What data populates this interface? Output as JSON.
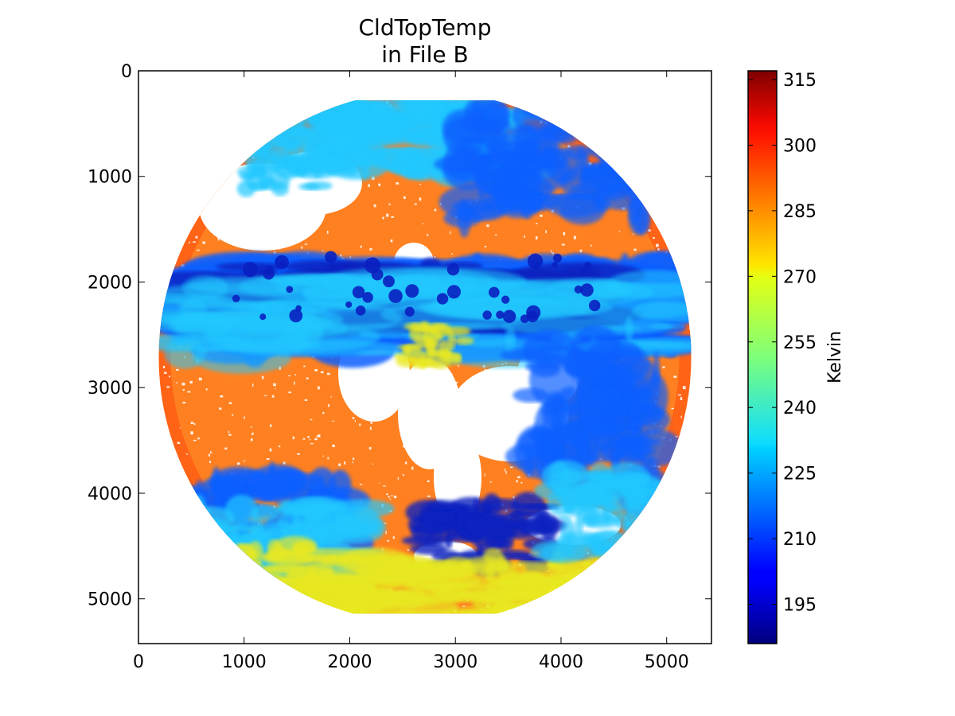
{
  "chart_data": {
    "type": "heatmap",
    "title": "CldTopTemp\nin File B",
    "title_lines": [
      "CldTopTemp",
      "in File B"
    ],
    "xlim": [
      0,
      5424
    ],
    "ylim": [
      5424,
      0
    ],
    "x_ticks": [
      0,
      1000,
      2000,
      3000,
      4000,
      5000
    ],
    "y_ticks": [
      0,
      1000,
      2000,
      3000,
      4000,
      5000
    ],
    "x_tick_labels": [
      "0",
      "1000",
      "2000",
      "3000",
      "4000",
      "5000"
    ],
    "y_tick_labels": [
      "0",
      "1000",
      "2000",
      "3000",
      "4000",
      "5000"
    ],
    "xlabel": "",
    "ylabel": "",
    "colorbar": {
      "label": "Kelvin",
      "colormap": "jet",
      "range": [
        186,
        317
      ],
      "ticks": [
        195,
        210,
        225,
        240,
        255,
        270,
        285,
        300,
        315
      ],
      "tick_labels": [
        "195",
        "210",
        "225",
        "240",
        "255",
        "270",
        "285",
        "300",
        "315"
      ]
    },
    "disk": {
      "center": [
        2712,
        2712
      ],
      "radius": 2520,
      "clipped_rows": [
        280,
        5140
      ]
    },
    "colors": {
      "ocean_clear": "#ff8020",
      "land_warm": "#ff5010",
      "high_cloud": "#1060ff",
      "deep_convection": "#0a20c0",
      "mid_cloud": "#20c8ff",
      "low_cloud": "#e8e820",
      "no_data": "#ffffff"
    },
    "grid": false,
    "legend": "none"
  }
}
